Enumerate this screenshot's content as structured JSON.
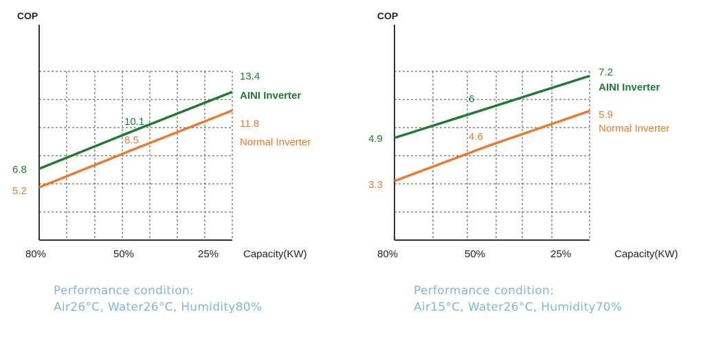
{
  "colors": {
    "ai": "#1e7a35",
    "normal": "#ec7a2e",
    "condition": "#7fb6dd",
    "axis": "#333333",
    "grid": "#444444"
  },
  "chart_data": [
    {
      "type": "line",
      "ylabel": "COP",
      "xlabel": "Capacity(KW)",
      "x": [
        "80%",
        "50%",
        "25%"
      ],
      "grid": true,
      "series": [
        {
          "name": "AINI Inverter",
          "key": "ai",
          "values": [
            6.8,
            10.1,
            13.4
          ]
        },
        {
          "name": "Normal Inverter",
          "key": "normal",
          "values": [
            5.2,
            8.5,
            11.8
          ]
        }
      ],
      "condition": {
        "heading": "Performance condition:",
        "detail": "Air26°C, Water26°C, Humidity80%"
      }
    },
    {
      "type": "line",
      "ylabel": "COP",
      "xlabel": "Capacity(KW)",
      "x": [
        "80%",
        "50%",
        "25%"
      ],
      "grid": true,
      "series": [
        {
          "name": "AINI Inverter",
          "key": "ai",
          "values": [
            4.9,
            6.0,
            7.2
          ]
        },
        {
          "name": "Normal Inverter",
          "key": "normal",
          "values": [
            3.3,
            4.6,
            5.9
          ]
        }
      ],
      "condition": {
        "heading": "Performance condition:",
        "detail": "Air15°C, Water26°C, Humidity70%"
      }
    }
  ]
}
